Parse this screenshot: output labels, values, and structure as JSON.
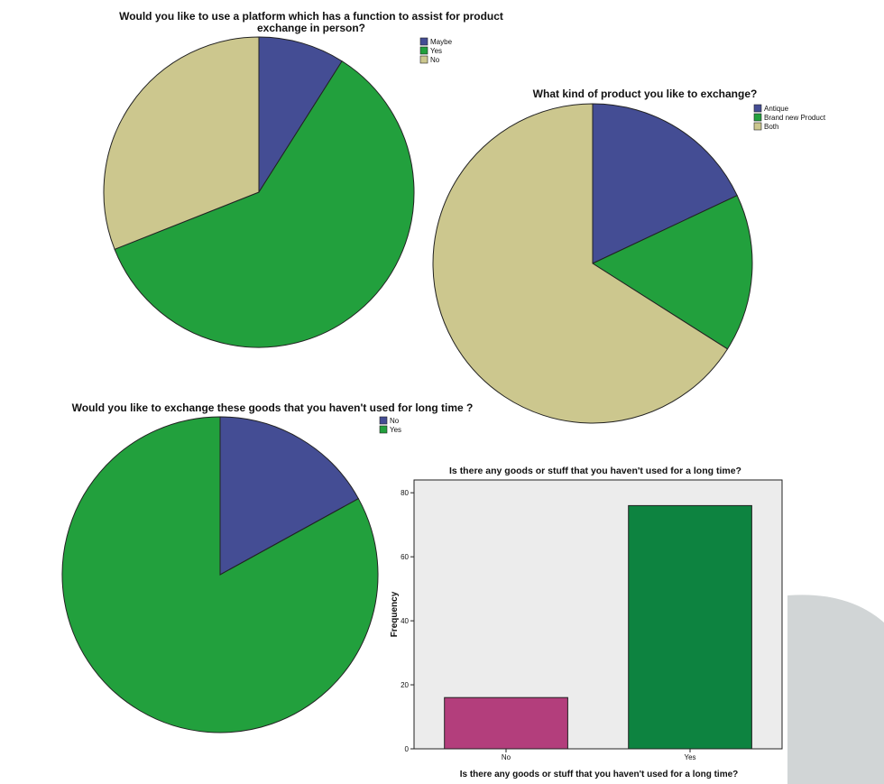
{
  "chart_data": [
    {
      "type": "pie",
      "title": "Would you like to use a platform which has a function to assist for product",
      "title_line2": "exchange in person?",
      "categories": [
        "Maybe",
        "Yes",
        "No"
      ],
      "values": [
        9,
        60,
        31
      ],
      "colors": [
        "#444d94",
        "#22a03d",
        "#ccc78e"
      ],
      "legend_position": "top-right"
    },
    {
      "type": "pie",
      "title": "What kind of product you like to exchange?",
      "categories": [
        "Antique",
        "Brand new Product",
        "Both"
      ],
      "values": [
        18,
        16,
        66
      ],
      "colors": [
        "#444d94",
        "#22a03d",
        "#ccc78e"
      ],
      "legend_position": "top-right"
    },
    {
      "type": "pie",
      "title": "Would you like to exchange these goods that you haven't used for long time ?",
      "categories": [
        "No",
        "Yes"
      ],
      "values": [
        17,
        83
      ],
      "colors": [
        "#444d94",
        "#22a03d"
      ],
      "legend_position": "top-right"
    },
    {
      "type": "bar",
      "title": "Is there any goods or stuff that you haven't used for a long time?",
      "categories": [
        "No",
        "Yes"
      ],
      "values": [
        16,
        76
      ],
      "colors": [
        "#b33e7c",
        "#0d8340"
      ],
      "xlabel": "Is there any goods or stuff that you haven't used for a long time?",
      "ylabel": "Frequency",
      "ylim": [
        0,
        84
      ],
      "yticks": [
        0,
        20,
        40,
        60,
        80
      ],
      "grid": false
    }
  ]
}
